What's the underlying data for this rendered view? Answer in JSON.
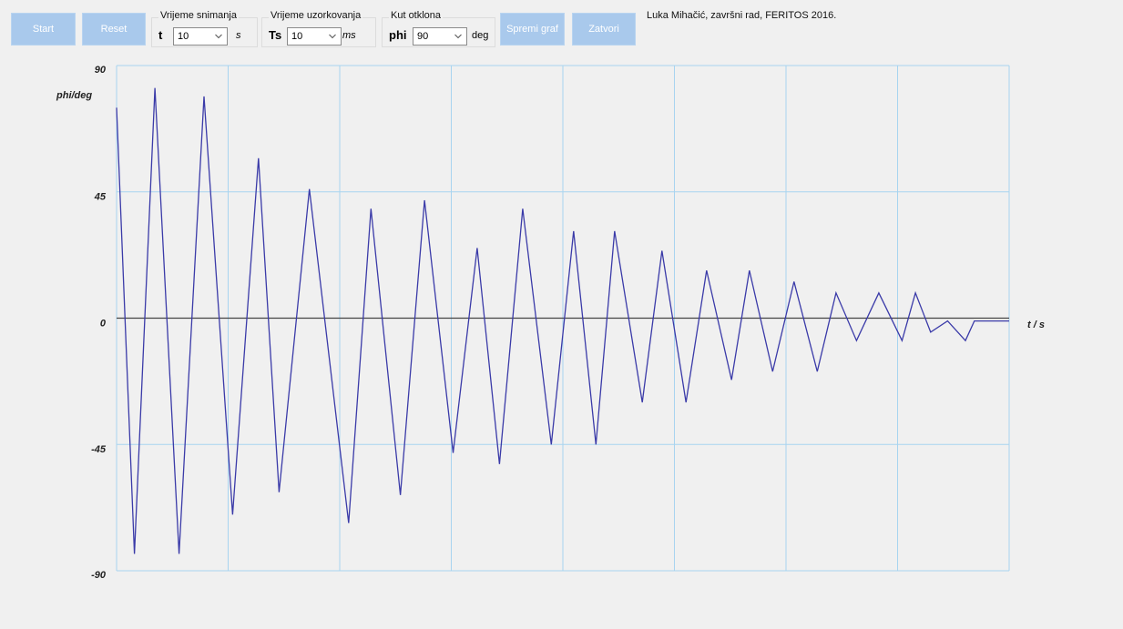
{
  "toolbar": {
    "buttons_left": [
      "Start",
      "Reset"
    ],
    "groups": [
      {
        "title": "Vrijeme snimanja",
        "symbol": "t",
        "value": "10",
        "unit": "s"
      },
      {
        "title": "Vrijeme uzorkovanja",
        "symbol": "Ts",
        "value": "10",
        "unit": "ms"
      },
      {
        "title": "Kut otklona",
        "symbol": "phi",
        "value": "90",
        "unit": "deg"
      }
    ],
    "buttons_right": [
      "Spremi graf",
      "Zatvori"
    ],
    "author": "Luka Mihačić, završni rad, FERITOS 2016."
  },
  "chart_data": {
    "type": "line",
    "y_label": "phi/deg",
    "x_label": "t / s",
    "x": [
      0,
      0.2,
      0.43,
      0.7,
      0.98,
      1.3,
      1.59,
      1.82,
      2.16,
      2.6,
      2.85,
      3.18,
      3.45,
      3.77,
      4.04,
      4.29,
      4.55,
      4.87,
      5.12,
      5.37,
      5.58,
      5.89,
      6.11,
      6.38,
      6.61,
      6.89,
      7.09,
      7.35,
      7.59,
      7.85,
      8.06,
      8.29,
      8.54,
      8.8,
      8.95,
      9.12,
      9.31,
      9.51,
      9.61,
      10
    ],
    "values": [
      75,
      -84,
      82,
      -84,
      79,
      -70,
      57,
      -62,
      46,
      -73,
      39,
      -63,
      42,
      -48,
      25,
      -52,
      39,
      -45,
      31,
      -45,
      31,
      -30,
      24,
      -30,
      17,
      -22,
      17,
      -19,
      13,
      -19,
      9,
      -8,
      9,
      -8,
      9,
      -5,
      -1,
      -8,
      -1,
      -1
    ],
    "color": "#3a3aa8",
    "xlim": [
      0,
      10
    ],
    "xticks": [
      0,
      1.25,
      2.5,
      3.75,
      5,
      6.25,
      7.5,
      8.75,
      10
    ],
    "ylim": [
      -90,
      90
    ],
    "yticks": [
      90,
      45,
      0,
      -45,
      -90
    ],
    "grid": true
  }
}
